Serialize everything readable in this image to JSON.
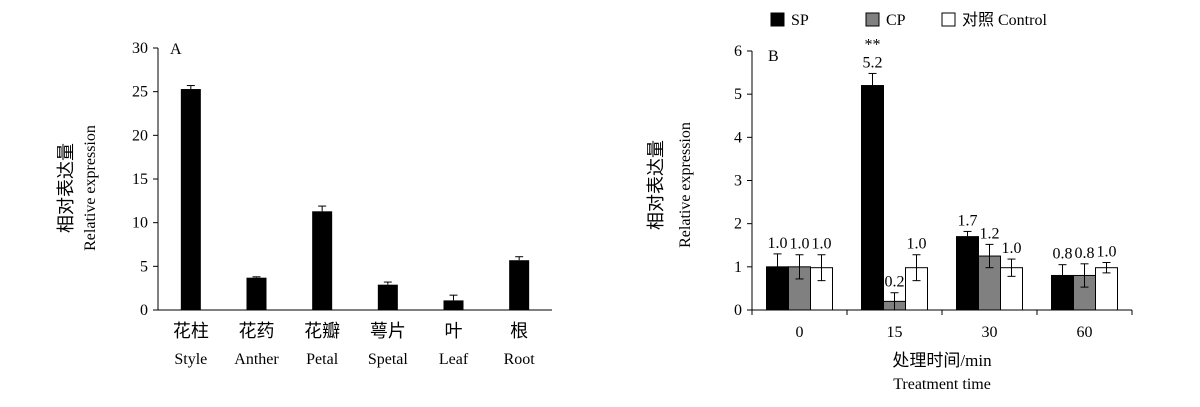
{
  "chart_data": [
    {
      "type": "bar",
      "panel_label": "A",
      "categories_cn": [
        "花柱",
        "花药",
        "花瓣",
        "萼片",
        "叶",
        "根"
      ],
      "categories_en": [
        "Style",
        "Anther",
        "Petal",
        "Spetal",
        "Leaf",
        "Root"
      ],
      "values": [
        25.3,
        3.7,
        11.3,
        2.9,
        1.1,
        5.7
      ],
      "errors": [
        0.4,
        0.1,
        0.6,
        0.3,
        0.6,
        0.4
      ],
      "ylabel_cn": "相对表达量",
      "ylabel_en": "Relative expression",
      "ylim": [
        0,
        30
      ],
      "yticks": [
        "0",
        "5",
        "10",
        "15",
        "20",
        "25",
        "30"
      ],
      "color": "#000000"
    },
    {
      "type": "bar",
      "panel_label": "B",
      "categories": [
        "0",
        "15",
        "30",
        "60"
      ],
      "series": [
        {
          "name": "SP",
          "color": "#000000",
          "values": [
            1.0,
            5.2,
            1.7,
            0.8
          ],
          "errors": [
            0.3,
            0.28,
            0.12,
            0.25
          ],
          "labels": [
            "1.0",
            "5.2",
            "1.7",
            "0.8"
          ]
        },
        {
          "name": "CP",
          "color": "#808080",
          "values": [
            1.0,
            0.2,
            1.25,
            0.8
          ],
          "errors": [
            0.28,
            0.2,
            0.27,
            0.27
          ],
          "labels": [
            "1.0",
            "0.2",
            "1.2",
            "0.8"
          ]
        },
        {
          "name": "对照 Control",
          "color": "#ffffff",
          "values": [
            0.98,
            0.98,
            0.98,
            0.98
          ],
          "errors": [
            0.3,
            0.3,
            0.2,
            0.12
          ],
          "labels": [
            "1.0",
            "1.0",
            "1.0",
            "1.0"
          ]
        }
      ],
      "annotation": "**",
      "xlabel_cn": "处理时间/min",
      "xlabel_en": "Treatment time",
      "ylabel_cn": "相对表达量",
      "ylabel_en": "Relative expression",
      "ylim": [
        0,
        6
      ],
      "yticks": [
        "0",
        "1",
        "2",
        "3",
        "4",
        "5",
        "6"
      ],
      "legend_position": "top"
    }
  ]
}
